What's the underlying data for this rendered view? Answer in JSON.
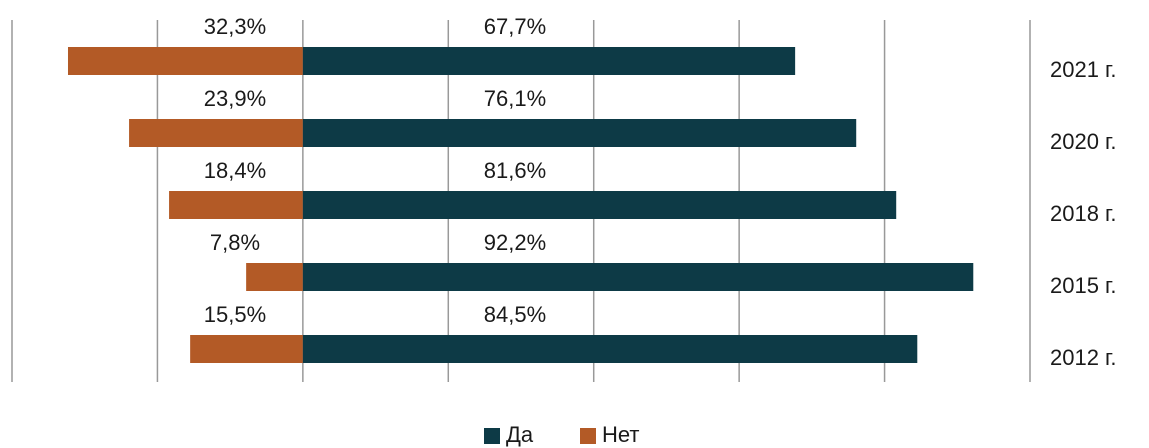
{
  "chart_data": {
    "type": "diverging_bar",
    "categories": [
      "2021 г.",
      "2020 г.",
      "2018 г.",
      "2015 г.",
      "2012 г."
    ],
    "series": [
      {
        "name": "Нет",
        "color": "#b35a26",
        "values": [
          32.3,
          23.9,
          18.4,
          7.8,
          15.5
        ],
        "value_labels": [
          "32,3%",
          "23,9%",
          "18,4%",
          "7,8%",
          "15,5%"
        ]
      },
      {
        "name": "Да",
        "color": "#0d3a46",
        "values": [
          67.7,
          76.1,
          81.6,
          92.2,
          84.5
        ],
        "value_labels": [
          "67,7%",
          "76,1%",
          "81,6%",
          "92,2%",
          "84,5%"
        ]
      }
    ],
    "xlim": [
      -40,
      100
    ],
    "xticks": [
      -40,
      -20,
      0,
      20,
      40,
      60,
      80,
      100
    ],
    "grid": true
  }
}
